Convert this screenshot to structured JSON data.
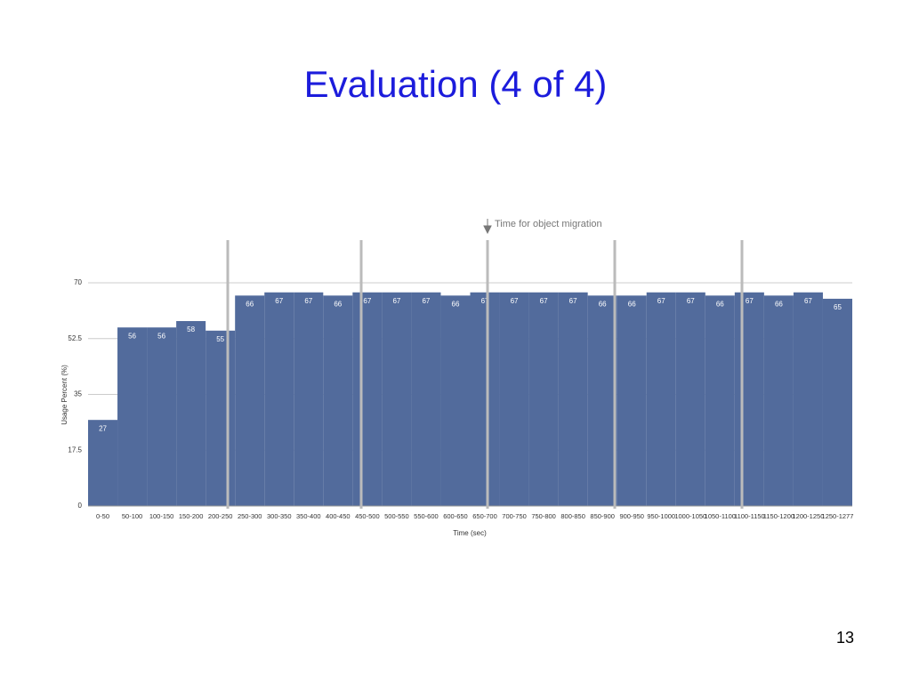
{
  "chart_data": {
    "type": "bar",
    "title": "Evaluation (4 of 4)",
    "annotation": "Time for object migration",
    "x_label": "Time (sec)",
    "y_label": "Usage Percent (%)",
    "categories": [
      "0-50",
      "50-100",
      "100-150",
      "150-200",
      "200-250",
      "250-300",
      "300-350",
      "350-400",
      "400-450",
      "450-500",
      "500-550",
      "550-600",
      "600-650",
      "650-700",
      "700-750",
      "750-800",
      "800-850",
      "850-900",
      "900-950",
      "950-1000",
      "1000-1050",
      "1050-1100",
      "1100-1150",
      "1150-1200",
      "1200-1250",
      "1250-1277"
    ],
    "values": [
      27,
      56,
      56,
      58,
      55,
      66,
      67,
      67,
      66,
      67,
      67,
      67,
      66,
      67,
      67,
      67,
      67,
      66,
      66,
      67,
      67,
      66,
      67,
      66,
      67,
      65
    ],
    "color": "#526b9c",
    "ylim": [
      0,
      70
    ],
    "yticks": [
      0,
      17.5,
      35,
      52.5,
      70
    ],
    "grid": true
  },
  "page_number": "13"
}
